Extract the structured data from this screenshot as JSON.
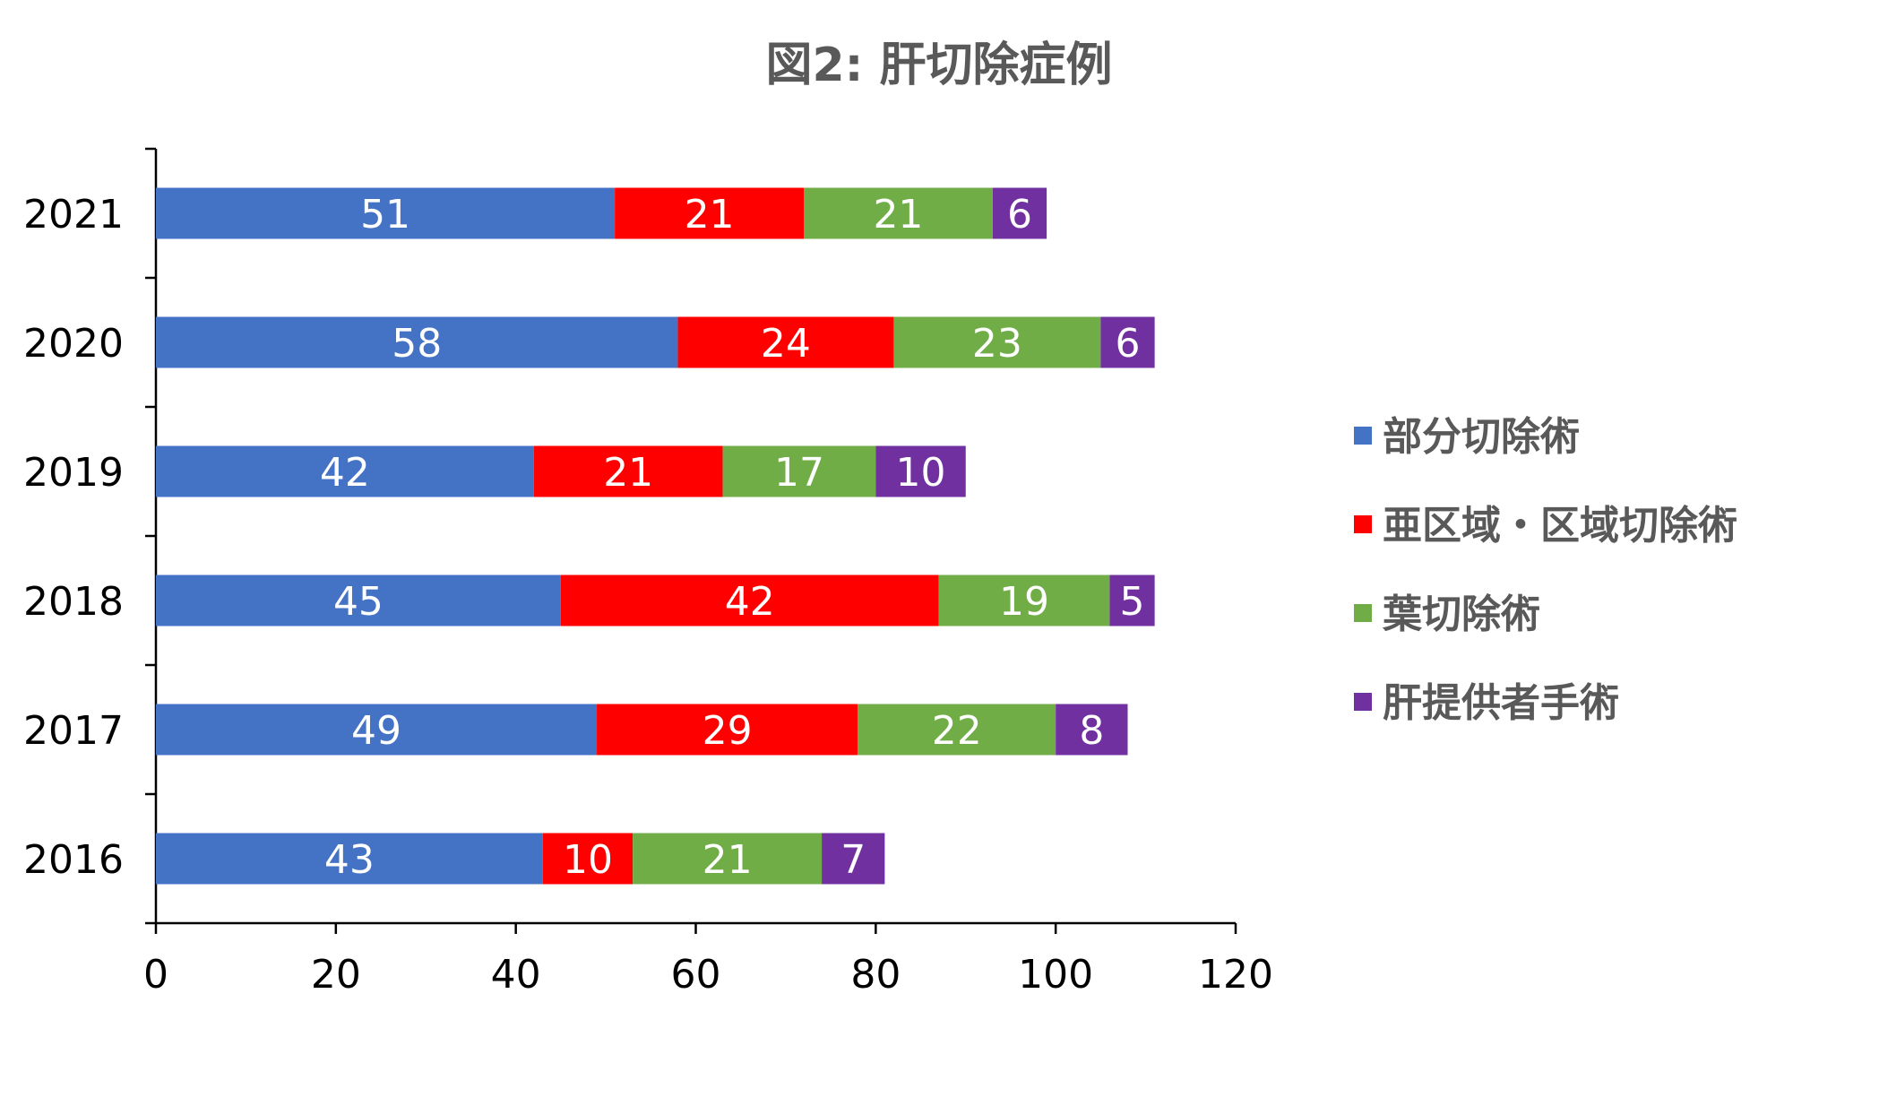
{
  "chart_data": {
    "type": "bar",
    "orientation": "horizontal",
    "stacked": true,
    "title": "図2: 肝切除症例",
    "categories": [
      "2016",
      "2017",
      "2018",
      "2019",
      "2020",
      "2021"
    ],
    "series": [
      {
        "name": "部分切除術",
        "color": "#4472C4",
        "values": [
          43,
          49,
          45,
          42,
          58,
          51
        ]
      },
      {
        "name": "亜区域・区域切除術",
        "color": "#FF0000",
        "values": [
          10,
          29,
          42,
          21,
          24,
          21
        ]
      },
      {
        "name": "葉切除術",
        "color": "#70AD47",
        "values": [
          21,
          22,
          19,
          17,
          23,
          21
        ]
      },
      {
        "name": "肝提供者手術",
        "color": "#7030A0",
        "values": [
          7,
          8,
          5,
          10,
          6,
          6
        ]
      }
    ],
    "x_ticks": [
      "0",
      "20",
      "40",
      "60",
      "80",
      "100",
      "120"
    ],
    "xlim": [
      0,
      120
    ],
    "data_labels": true,
    "grid": false,
    "legend_position": "right"
  }
}
